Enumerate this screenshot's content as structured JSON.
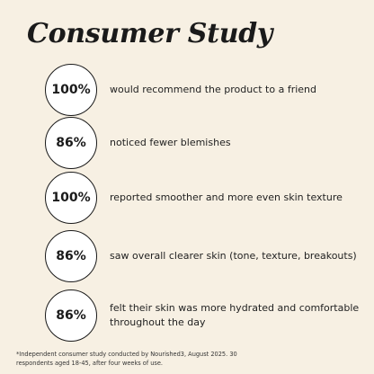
{
  "title": "Consumer Study",
  "stats": [
    {
      "value": "100%",
      "text": "would recommend the product to a friend"
    },
    {
      "value": "86%",
      "text": "noticed fewer blemishes"
    },
    {
      "value": "100%",
      "text": "reported smoother and more even skin texture"
    },
    {
      "value": "86%",
      "text": "saw overall clearer skin (tone, texture, breakouts)"
    },
    {
      "value": "86%",
      "text": "felt their skin was more hydrated and comfortable throughout the day"
    }
  ],
  "footnote": "*Independent consumer study conducted by Nourished3, August 2025. 30 respondents aged 18-45, after four weeks of use.",
  "colors": {
    "background": "#f7f0e3",
    "text": "#1a1a1a",
    "circle_fill": "#ffffff"
  }
}
